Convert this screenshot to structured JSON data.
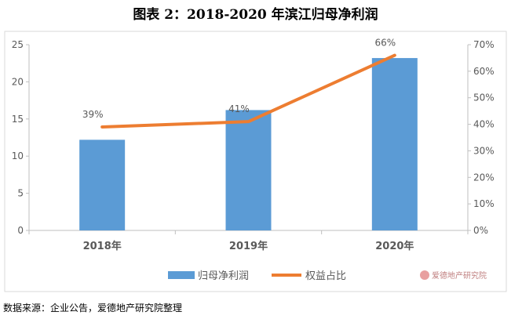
{
  "title": "图表 2：2018-2020 年滨江归母净利润",
  "source": "数据来源：企业公告，爱德地产研究院整理",
  "watermark": "爱德地产研究院",
  "colors": {
    "bar": "#5b9bd5",
    "line": "#ed7d31",
    "axis": "#bfbfbf",
    "text": "#595959"
  },
  "chart_data": {
    "type": "bar+line",
    "categories": [
      "2018年",
      "2019年",
      "2020年"
    ],
    "series": [
      {
        "name": "归母净利润",
        "type": "bar",
        "axis": "left",
        "values": [
          12.2,
          16.2,
          23.2
        ]
      },
      {
        "name": "权益占比",
        "type": "line",
        "axis": "right",
        "values": [
          39,
          41,
          66
        ],
        "labels": [
          "39%",
          "41%",
          "66%"
        ]
      }
    ],
    "ylim_left": [
      0,
      25
    ],
    "yticks_left": [
      "0",
      "5",
      "10",
      "15",
      "20",
      "25"
    ],
    "ylim_right": [
      0,
      70
    ],
    "yticks_right": [
      "0%",
      "10%",
      "20%",
      "30%",
      "40%",
      "50%",
      "60%",
      "70%"
    ],
    "legend_position": "bottom",
    "grid": false
  }
}
